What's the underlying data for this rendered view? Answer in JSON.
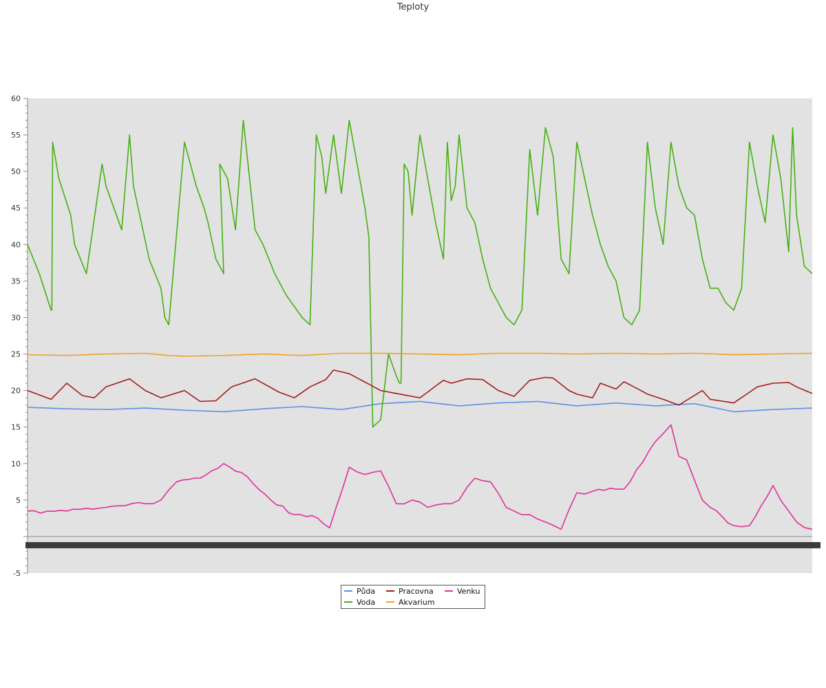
{
  "chart_data": {
    "type": "line",
    "title": "Teploty",
    "xlabel": "",
    "ylabel": "",
    "ylim": [
      -5,
      60
    ],
    "yticks": [
      -5,
      5,
      10,
      15,
      20,
      25,
      30,
      35,
      40,
      45,
      50,
      55,
      60
    ],
    "x_tick_labels_legible": false,
    "legend_placement": "bottom-center",
    "series": [
      {
        "name": "Půda",
        "color": "#5b8fe3",
        "x": [
          0,
          0.05,
          0.1,
          0.15,
          0.2,
          0.25,
          0.3,
          0.35,
          0.4,
          0.45,
          0.5,
          0.55,
          0.6,
          0.65,
          0.7,
          0.75,
          0.8,
          0.85,
          0.9,
          0.95,
          1
        ],
        "values": [
          17.7,
          17.5,
          17.4,
          17.6,
          17.3,
          17.1,
          17.5,
          17.8,
          17.4,
          18.2,
          18.5,
          17.9,
          18.3,
          18.5,
          17.9,
          18.3,
          17.9,
          18.2,
          17.1,
          17.4,
          17.6
        ]
      },
      {
        "name": "Voda",
        "color": "#44b011",
        "x": [
          0,
          0.015,
          0.03,
          0.031,
          0.032,
          0.04,
          0.055,
          0.06,
          0.075,
          0.095,
          0.1,
          0.12,
          0.13,
          0.135,
          0.155,
          0.17,
          0.175,
          0.18,
          0.2,
          0.215,
          0.225,
          0.23,
          0.24,
          0.25,
          0.245,
          0.255,
          0.265,
          0.275,
          0.28,
          0.29,
          0.3,
          0.315,
          0.33,
          0.35,
          0.36,
          0.368,
          0.375,
          0.38,
          0.39,
          0.4,
          0.41,
          0.43,
          0.435,
          0.44,
          0.45,
          0.46,
          0.47,
          0.474,
          0.476,
          0.48,
          0.485,
          0.49,
          0.5,
          0.51,
          0.52,
          0.53,
          0.535,
          0.54,
          0.545,
          0.55,
          0.56,
          0.57,
          0.58,
          0.59,
          0.6,
          0.61,
          0.62,
          0.63,
          0.64,
          0.65,
          0.66,
          0.67,
          0.68,
          0.69,
          0.7,
          0.71,
          0.72,
          0.73,
          0.74,
          0.75,
          0.76,
          0.77,
          0.78,
          0.79,
          0.8,
          0.81,
          0.82,
          0.83,
          0.84,
          0.85,
          0.86,
          0.87,
          0.88,
          0.89,
          0.9,
          0.91,
          0.92,
          0.93,
          0.94,
          0.95,
          0.96,
          0.97,
          0.975,
          0.98,
          0.99,
          1.0
        ],
        "values": [
          40,
          36,
          31,
          31,
          54,
          49,
          44,
          40,
          36,
          51,
          48,
          42,
          55,
          48,
          38,
          34,
          30,
          29,
          54,
          48,
          45,
          43,
          38,
          36,
          51,
          49,
          42,
          57,
          52,
          42,
          40,
          36,
          33,
          30,
          29,
          55,
          52,
          47,
          55,
          47,
          57,
          45,
          41,
          15,
          16,
          25,
          22,
          21,
          21,
          51,
          50,
          44,
          55,
          49,
          43,
          38,
          54,
          46,
          48,
          55,
          45,
          43,
          38,
          34,
          32,
          30,
          29,
          31,
          53,
          44,
          56,
          52,
          38,
          36,
          54,
          49,
          44,
          40,
          37,
          35,
          30,
          29,
          31,
          54,
          45,
          40,
          54,
          48,
          45,
          44,
          38,
          34,
          34,
          32,
          31,
          34,
          54,
          48,
          43,
          55,
          49,
          39,
          56,
          44,
          37,
          36
        ]
      },
      {
        "name": "Pracovna",
        "color": "#a41c1c",
        "x": [
          0,
          0.03,
          0.05,
          0.07,
          0.085,
          0.1,
          0.13,
          0.15,
          0.17,
          0.2,
          0.22,
          0.24,
          0.26,
          0.29,
          0.32,
          0.34,
          0.36,
          0.38,
          0.39,
          0.41,
          0.45,
          0.5,
          0.53,
          0.54,
          0.56,
          0.58,
          0.6,
          0.62,
          0.64,
          0.66,
          0.67,
          0.69,
          0.7,
          0.72,
          0.73,
          0.75,
          0.76,
          0.78,
          0.79,
          0.81,
          0.83,
          0.86,
          0.87,
          0.9,
          0.93,
          0.95,
          0.97,
          0.98,
          1.0
        ],
        "values": [
          20,
          18.8,
          21,
          19.3,
          19,
          20.5,
          21.6,
          20,
          19,
          20,
          18.5,
          18.6,
          20.5,
          21.6,
          19.8,
          19,
          20.5,
          21.5,
          22.8,
          22.3,
          20,
          19,
          21.4,
          21,
          21.6,
          21.5,
          20,
          19.2,
          21.4,
          21.8,
          21.7,
          20,
          19.5,
          19,
          21,
          20.2,
          21.2,
          20.1,
          19.5,
          18.8,
          18,
          20,
          18.8,
          18.3,
          20.5,
          21,
          21.1,
          20.5,
          19.6
        ]
      },
      {
        "name": "Akvarium",
        "color": "#f0a020",
        "x": [
          0,
          0.05,
          0.1,
          0.15,
          0.18,
          0.2,
          0.25,
          0.3,
          0.35,
          0.4,
          0.45,
          0.5,
          0.55,
          0.6,
          0.65,
          0.7,
          0.75,
          0.8,
          0.85,
          0.9,
          0.95,
          1
        ],
        "values": [
          24.9,
          24.8,
          25,
          25.1,
          24.8,
          24.7,
          24.8,
          25,
          24.8,
          25.1,
          25.1,
          25,
          24.9,
          25.1,
          25.1,
          25,
          25.1,
          25,
          25.1,
          24.9,
          25,
          25.1
        ]
      },
      {
        "name": "Venku",
        "color": "#e02f9c",
        "x": [
          0,
          0.05,
          0.1,
          0.15,
          0.17,
          0.19,
          0.22,
          0.25,
          0.28,
          0.31,
          0.34,
          0.37,
          0.385,
          0.41,
          0.43,
          0.45,
          0.47,
          0.49,
          0.51,
          0.53,
          0.55,
          0.57,
          0.59,
          0.61,
          0.62,
          0.64,
          0.66,
          0.68,
          0.7,
          0.72,
          0.75,
          0.76,
          0.8,
          0.82,
          0.83,
          0.84,
          0.86,
          0.87,
          0.9,
          0.92,
          0.95,
          0.97,
          0.98,
          1.0
        ],
        "values": [
          3.5,
          3.5,
          4,
          4.5,
          5,
          7.5,
          8,
          10,
          8.2,
          5,
          3,
          2.5,
          1.2,
          9.5,
          8.5,
          9,
          4.5,
          5,
          4,
          4.5,
          5,
          8,
          7.5,
          4,
          3.5,
          3,
          2,
          1,
          6,
          6.2,
          6.5,
          6.5,
          13,
          15.3,
          11,
          10.5,
          5,
          4,
          1.5,
          1.5,
          7,
          3.5,
          2,
          1
        ]
      }
    ]
  }
}
